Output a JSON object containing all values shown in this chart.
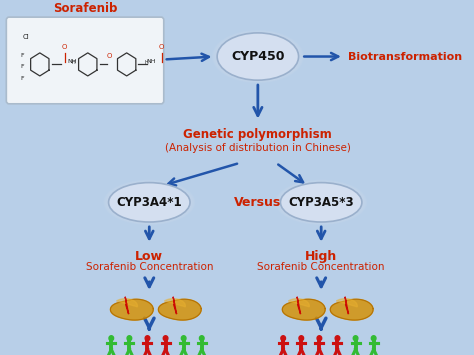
{
  "bg_color": "#b8cfe8",
  "title_text": "Sorafenib",
  "title_color": "#cc2200",
  "cyp450_label": "CYP450",
  "biotransformation_label": "Biotransformation",
  "biotransformation_color": "#cc2200",
  "genetic_poly_line1": "Genetic polymorphism",
  "genetic_poly_line2": "(Analysis of distribution in Chinese)",
  "genetic_poly_color": "#cc2200",
  "cyp3a4_label": "CYP3A4*1",
  "cyp3a5_label": "CYP3A5*3",
  "versus_label": "Versus",
  "versus_color": "#cc2200",
  "low_line1": "Low",
  "low_line2": "Sorafenib Concentration",
  "high_line1": "High",
  "high_line2": "Sorafenib Concentration",
  "conc_color": "#cc2200",
  "arrow_color": "#2255aa",
  "ellipse_face": "#d4dff0",
  "ellipse_edge": "#9ab0cc",
  "box_face": "#f0f4f8",
  "box_edge": "#aabbcc",
  "left_people": [
    "green",
    "red",
    "red",
    "green",
    "green",
    "green"
  ],
  "right_people": [
    "red",
    "red",
    "green",
    "green",
    "green",
    "green"
  ]
}
